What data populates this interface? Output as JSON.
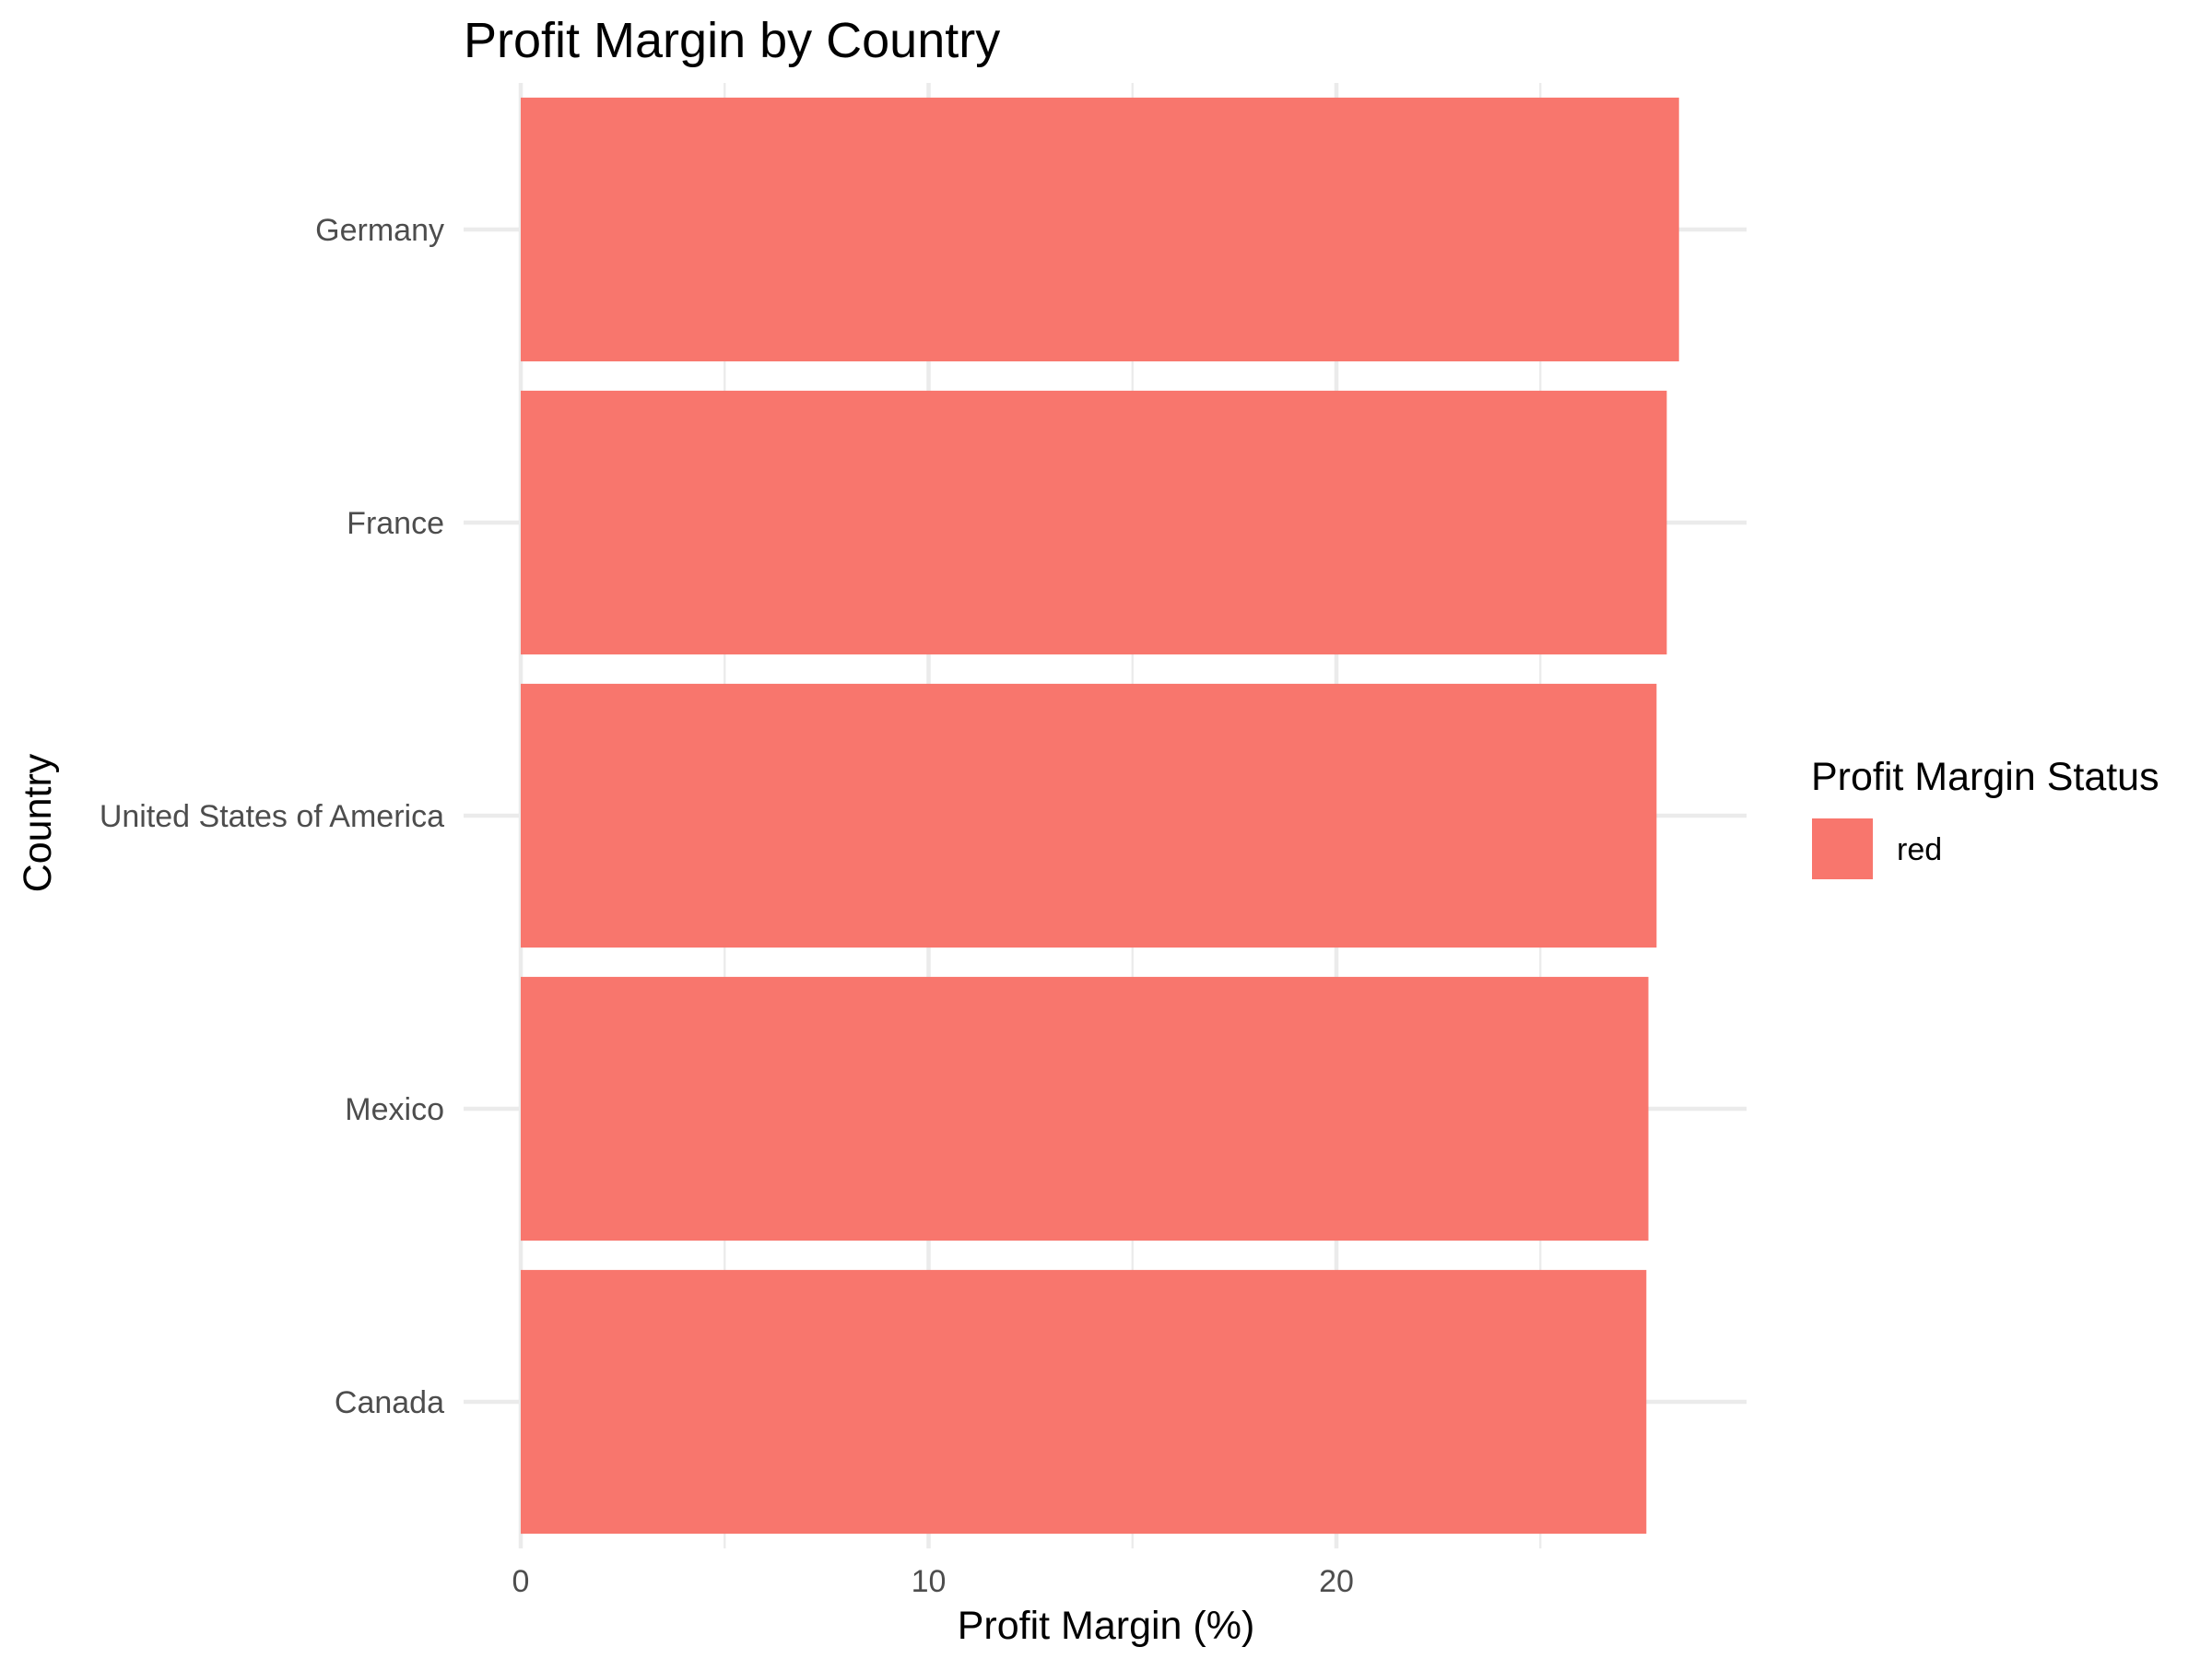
{
  "chart_data": {
    "type": "bar",
    "orientation": "horizontal",
    "title": "Profit Margin by Country",
    "xlabel": "Profit Margin (%)",
    "ylabel": "Country",
    "categories": [
      "Canada",
      "Mexico",
      "United States of America",
      "France",
      "Germany"
    ],
    "values": [
      27.6,
      27.65,
      27.85,
      28.1,
      28.4
    ],
    "xlim": [
      0,
      29.8
    ],
    "xticks": [
      0,
      10,
      20
    ],
    "xtick_labels": [
      "0",
      "10",
      "20"
    ],
    "grid": true,
    "legend": {
      "title": "Profit Margin Status",
      "placement": "right",
      "items": [
        {
          "label": "red",
          "color": "#F8766D"
        }
      ]
    },
    "bar_color": "#F8766D"
  }
}
